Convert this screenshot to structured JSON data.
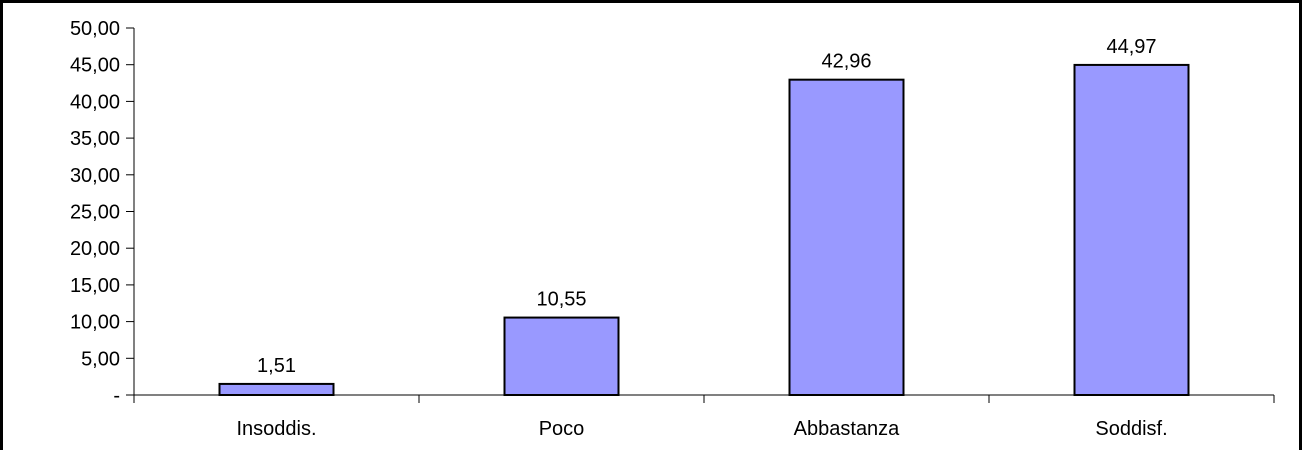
{
  "chart_data": {
    "type": "bar",
    "categories": [
      "Insoddis.",
      "Poco",
      "Abbastanza",
      "Soddisf."
    ],
    "values": [
      1.51,
      10.55,
      42.96,
      44.97
    ],
    "value_labels": [
      "1,51",
      "10,55",
      "42,96",
      "44,97"
    ],
    "ylim": [
      0,
      50
    ],
    "y_ticks": [
      0,
      5,
      10,
      15,
      20,
      25,
      30,
      35,
      40,
      45,
      50
    ],
    "y_tick_labels": [
      "-",
      "5,00",
      "10,00",
      "15,00",
      "20,00",
      "25,00",
      "30,00",
      "35,00",
      "40,00",
      "45,00",
      "50,00"
    ],
    "grid": false,
    "legend": "none",
    "bar_color": "#9999ff",
    "bar_border_color": "#000000"
  }
}
